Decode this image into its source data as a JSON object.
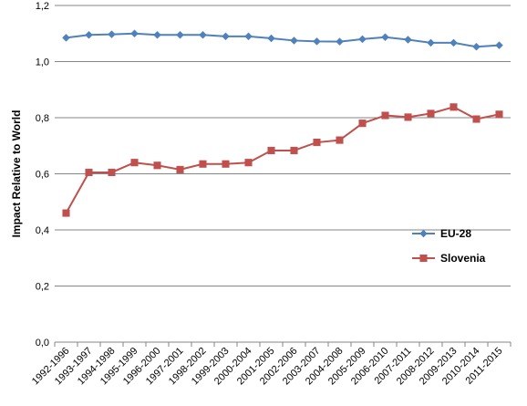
{
  "chart_data": {
    "type": "line",
    "title": "",
    "xlabel": "",
    "ylabel": "Impact Relative to World",
    "ylim": [
      0,
      1.2
    ],
    "yticks": [
      "0,0",
      "0,2",
      "0,4",
      "0,6",
      "0,8",
      "1,0",
      "1,2"
    ],
    "grid": "horizontal",
    "legend_position": "right",
    "categories": [
      "1992-1996",
      "1993-1997",
      "1994-1998",
      "1995-1999",
      "1996-2000",
      "1997-2001",
      "1998-2002",
      "1999-2003",
      "2000-2004",
      "2001-2005",
      "2002-2006",
      "2003-2007",
      "2004-2008",
      "2005-2009",
      "2006-2010",
      "2007-2011",
      "2008-2012",
      "2009-2013",
      "2010-2014",
      "2011-2015"
    ],
    "series": [
      {
        "name": "EU-28",
        "color": "#4F81BD",
        "marker": "diamond",
        "values": [
          1.085,
          1.095,
          1.097,
          1.1,
          1.095,
          1.095,
          1.095,
          1.09,
          1.09,
          1.083,
          1.075,
          1.072,
          1.071,
          1.08,
          1.087,
          1.078,
          1.067,
          1.067,
          1.053,
          1.058
        ]
      },
      {
        "name": "Slovenia",
        "color": "#C0504D",
        "marker": "square",
        "values": [
          0.46,
          0.605,
          0.605,
          0.64,
          0.63,
          0.615,
          0.635,
          0.635,
          0.64,
          0.683,
          0.683,
          0.712,
          0.72,
          0.78,
          0.808,
          0.802,
          0.815,
          0.838,
          0.795,
          0.812
        ]
      }
    ]
  }
}
